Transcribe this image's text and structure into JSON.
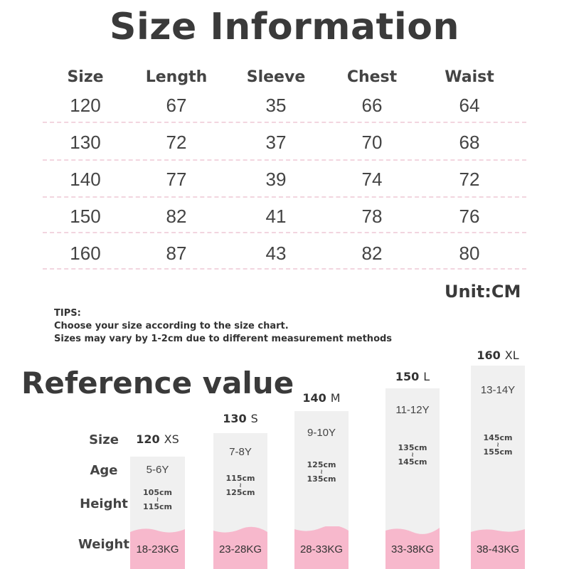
{
  "title": "Size Information",
  "table": {
    "headers": [
      "Size",
      "Length",
      "Sleeve",
      "Chest",
      "Waist"
    ],
    "rows": [
      [
        "120",
        "67",
        "35",
        "66",
        "64"
      ],
      [
        "130",
        "72",
        "37",
        "70",
        "68"
      ],
      [
        "140",
        "77",
        "39",
        "74",
        "72"
      ],
      [
        "150",
        "82",
        "41",
        "78",
        "76"
      ],
      [
        "160",
        "87",
        "43",
        "82",
        "80"
      ]
    ]
  },
  "unit": "Unit:CM",
  "tips": {
    "heading": "TIPS:",
    "line1": "Choose your size according to the size chart.",
    "line2": "Sizes may vary by 1-2cm due to different measurement methods"
  },
  "reference": {
    "title": "Reference value",
    "labels": {
      "size": "Size",
      "age": "Age",
      "height": "Height",
      "weight": "Weight"
    },
    "columns": [
      {
        "num": "120",
        "size": "XS",
        "age": "5-6Y",
        "h_min": "105cm",
        "tilde": "≀",
        "h_max": "115cm",
        "weight": "18-23KG"
      },
      {
        "num": "130",
        "size": "S",
        "age": "7-8Y",
        "h_min": "115cm",
        "tilde": "≀",
        "h_max": "125cm",
        "weight": "23-28KG"
      },
      {
        "num": "140",
        "size": "M",
        "age": "9-10Y",
        "h_min": "125cm",
        "tilde": "≀",
        "h_max": "135cm",
        "weight": "28-33KG"
      },
      {
        "num": "150",
        "size": "L",
        "age": "11-12Y",
        "h_min": "135cm",
        "tilde": "≀",
        "h_max": "145cm",
        "weight": "33-38KG"
      },
      {
        "num": "160",
        "size": "XL",
        "age": "13-14Y",
        "h_min": "145cm",
        "tilde": "≀",
        "h_max": "155cm",
        "weight": "38-43KG"
      }
    ]
  },
  "colors": {
    "pink": "#f7b8cc",
    "column_bg": "#f0f0f0",
    "divider": "#f2d5df"
  }
}
